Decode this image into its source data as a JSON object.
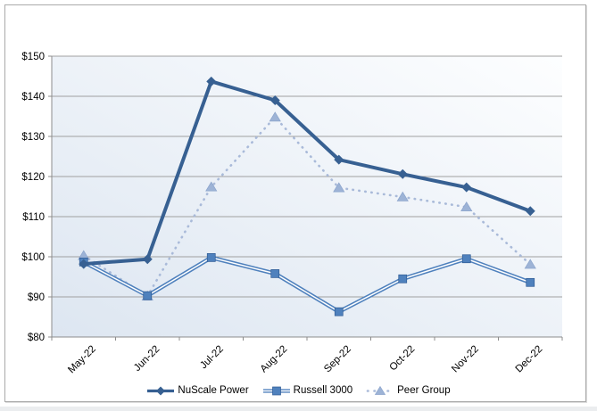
{
  "chart_data": {
    "type": "line",
    "title": "",
    "categories": [
      "May-22",
      "Jun-22",
      "Jul-22",
      "Aug-22",
      "Sep-22",
      "Oct-22",
      "Nov-22",
      "Dec-22"
    ],
    "series": [
      {
        "name": "NuScale Power",
        "marker": "diamond",
        "line_style": "solid",
        "color": "#376092",
        "values": [
          98.2,
          99.4,
          143.7,
          139.0,
          124.2,
          120.6,
          117.3,
          111.4
        ]
      },
      {
        "name": "Russell 3000",
        "marker": "square",
        "line_style": "double",
        "color": "#4f81bd",
        "values": [
          98.7,
          90.3,
          99.8,
          95.8,
          86.3,
          94.5,
          99.5,
          93.6
        ]
      },
      {
        "name": "Peer Group",
        "marker": "triangle",
        "line_style": "dotted",
        "color": "#a9bad9",
        "marker_color": "#9db3d6",
        "values": [
          100.3,
          90.2,
          117.4,
          134.8,
          117.2,
          114.9,
          112.4,
          98.1
        ]
      }
    ],
    "xlabel": "",
    "ylabel": "",
    "ylim": [
      80,
      150
    ],
    "y_tick_values": [
      80,
      90,
      100,
      110,
      120,
      130,
      140,
      150
    ],
    "y_ticks": [
      "$80",
      "$90",
      "$100",
      "$110",
      "$120",
      "$130",
      "$140",
      "$150"
    ],
    "grid": true,
    "legend_position": "bottom",
    "gridline_color": "#a0a0a0",
    "axis_color": "#8c8c8c",
    "label_color": "#000000",
    "plot_bg_gradient": [
      "#dde6f1",
      "#fdfeff"
    ]
  }
}
